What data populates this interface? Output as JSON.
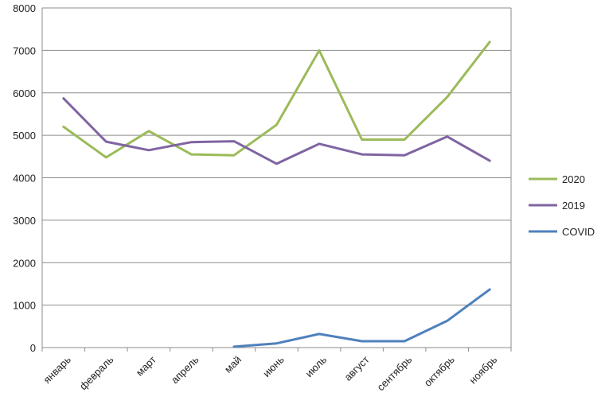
{
  "chart_data": {
    "type": "line",
    "categories": [
      "январь",
      "февраль",
      "март",
      "апрель",
      "май",
      "июнь",
      "июль",
      "август",
      "сентябрь",
      "октябрь",
      "ноябрь"
    ],
    "series": [
      {
        "name": "2020",
        "color": "#9bbb59",
        "values": [
          5200,
          4480,
          5100,
          4550,
          4530,
          5250,
          7000,
          4900,
          4900,
          5900,
          7200
        ]
      },
      {
        "name": "2019",
        "color": "#8064a2",
        "values": [
          5870,
          4850,
          4650,
          4840,
          4860,
          4330,
          4800,
          4550,
          4530,
          4970,
          4400
        ]
      },
      {
        "name": "COVID",
        "color": "#4f81bd",
        "values": [
          null,
          null,
          null,
          null,
          20,
          100,
          320,
          150,
          150,
          630,
          1370
        ]
      }
    ],
    "ylim": [
      0,
      8000
    ],
    "yticks": [
      0,
      1000,
      2000,
      3000,
      4000,
      5000,
      6000,
      7000,
      8000
    ],
    "grid": true,
    "legend_position": "right",
    "title": "",
    "xlabel": "",
    "ylabel": ""
  }
}
